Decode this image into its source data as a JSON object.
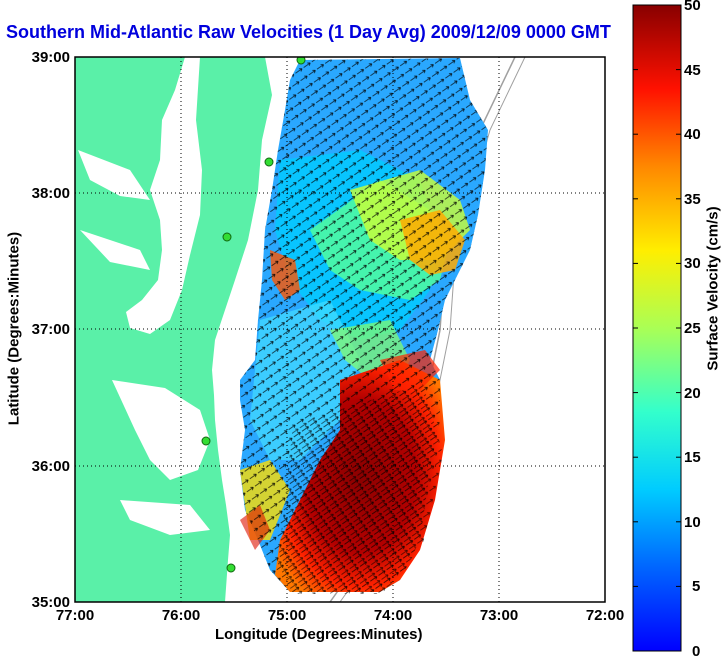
{
  "title": "Southern Mid-Atlantic Raw Velocities (1 Day Avg) 2009/12/09 0000 GMT",
  "x_axis": {
    "label": "Longitude (Degrees:Minutes)",
    "ticks": [
      "77:00",
      "76:00",
      "75:00",
      "74:00",
      "73:00",
      "72:00"
    ]
  },
  "y_axis": {
    "label": "Latitude (Degrees:Minutes)",
    "ticks": [
      "39:00",
      "38:00",
      "37:00",
      "36:00",
      "35:00"
    ]
  },
  "colorbar": {
    "label": "Surface Velocity (cm/s)",
    "ticks": [
      "50",
      "45",
      "40",
      "35",
      "30",
      "25",
      "20",
      "15",
      "10",
      "5",
      "0"
    ],
    "min": 0,
    "max": 50,
    "colormap": "jet"
  },
  "map_extent": {
    "lon": [
      -77,
      -72
    ],
    "lat": [
      35,
      39
    ]
  },
  "colors": {
    "land": "#5af0a8",
    "water": "#ffffff",
    "title": "#0000dd",
    "grid": "#000000",
    "bathymetry": "#a0a0a0",
    "stations": "#33dd33"
  }
}
